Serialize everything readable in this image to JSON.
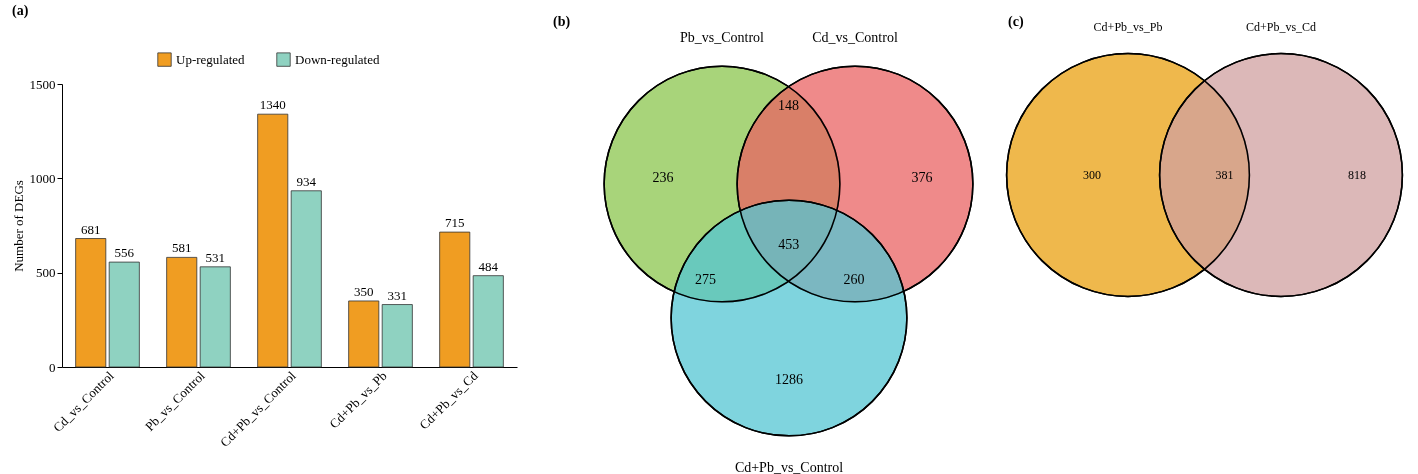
{
  "chart_data": [
    {
      "type": "bar",
      "title": "(a)",
      "ylabel": "Number of DEGs",
      "categories": [
        "Cd_vs_Control",
        "Pb_vs_Control",
        "Cd+Pb_vs_Control",
        "Cd+Pb_vs_Pb",
        "Cd+Pb_vs_Cd"
      ],
      "series": [
        {
          "name": "Up-regulated",
          "color": "#f09d22",
          "values": [
            681,
            581,
            1340,
            350,
            715
          ]
        },
        {
          "name": "Down-regulated",
          "color": "#8fd2c1",
          "values": [
            556,
            531,
            934,
            331,
            484
          ]
        }
      ],
      "ylim": [
        0,
        1500
      ],
      "yticks": [
        0,
        500,
        1000,
        1500
      ],
      "data_labels": true,
      "legend": "top"
    },
    {
      "type": "other",
      "title": "(b)",
      "annotations": [
        "Pb_vs_Control",
        "Cd_vs_Control",
        "Cd+Pb_vs_Control",
        "236",
        "376",
        "1286",
        "148",
        "275",
        "260",
        "453"
      ]
    },
    {
      "type": "other",
      "title": "(c)",
      "annotations": [
        "Cd+Pb_vs_Pb",
        "Cd+Pb_vs_Cd",
        "300",
        "818",
        "381"
      ]
    }
  ]
}
